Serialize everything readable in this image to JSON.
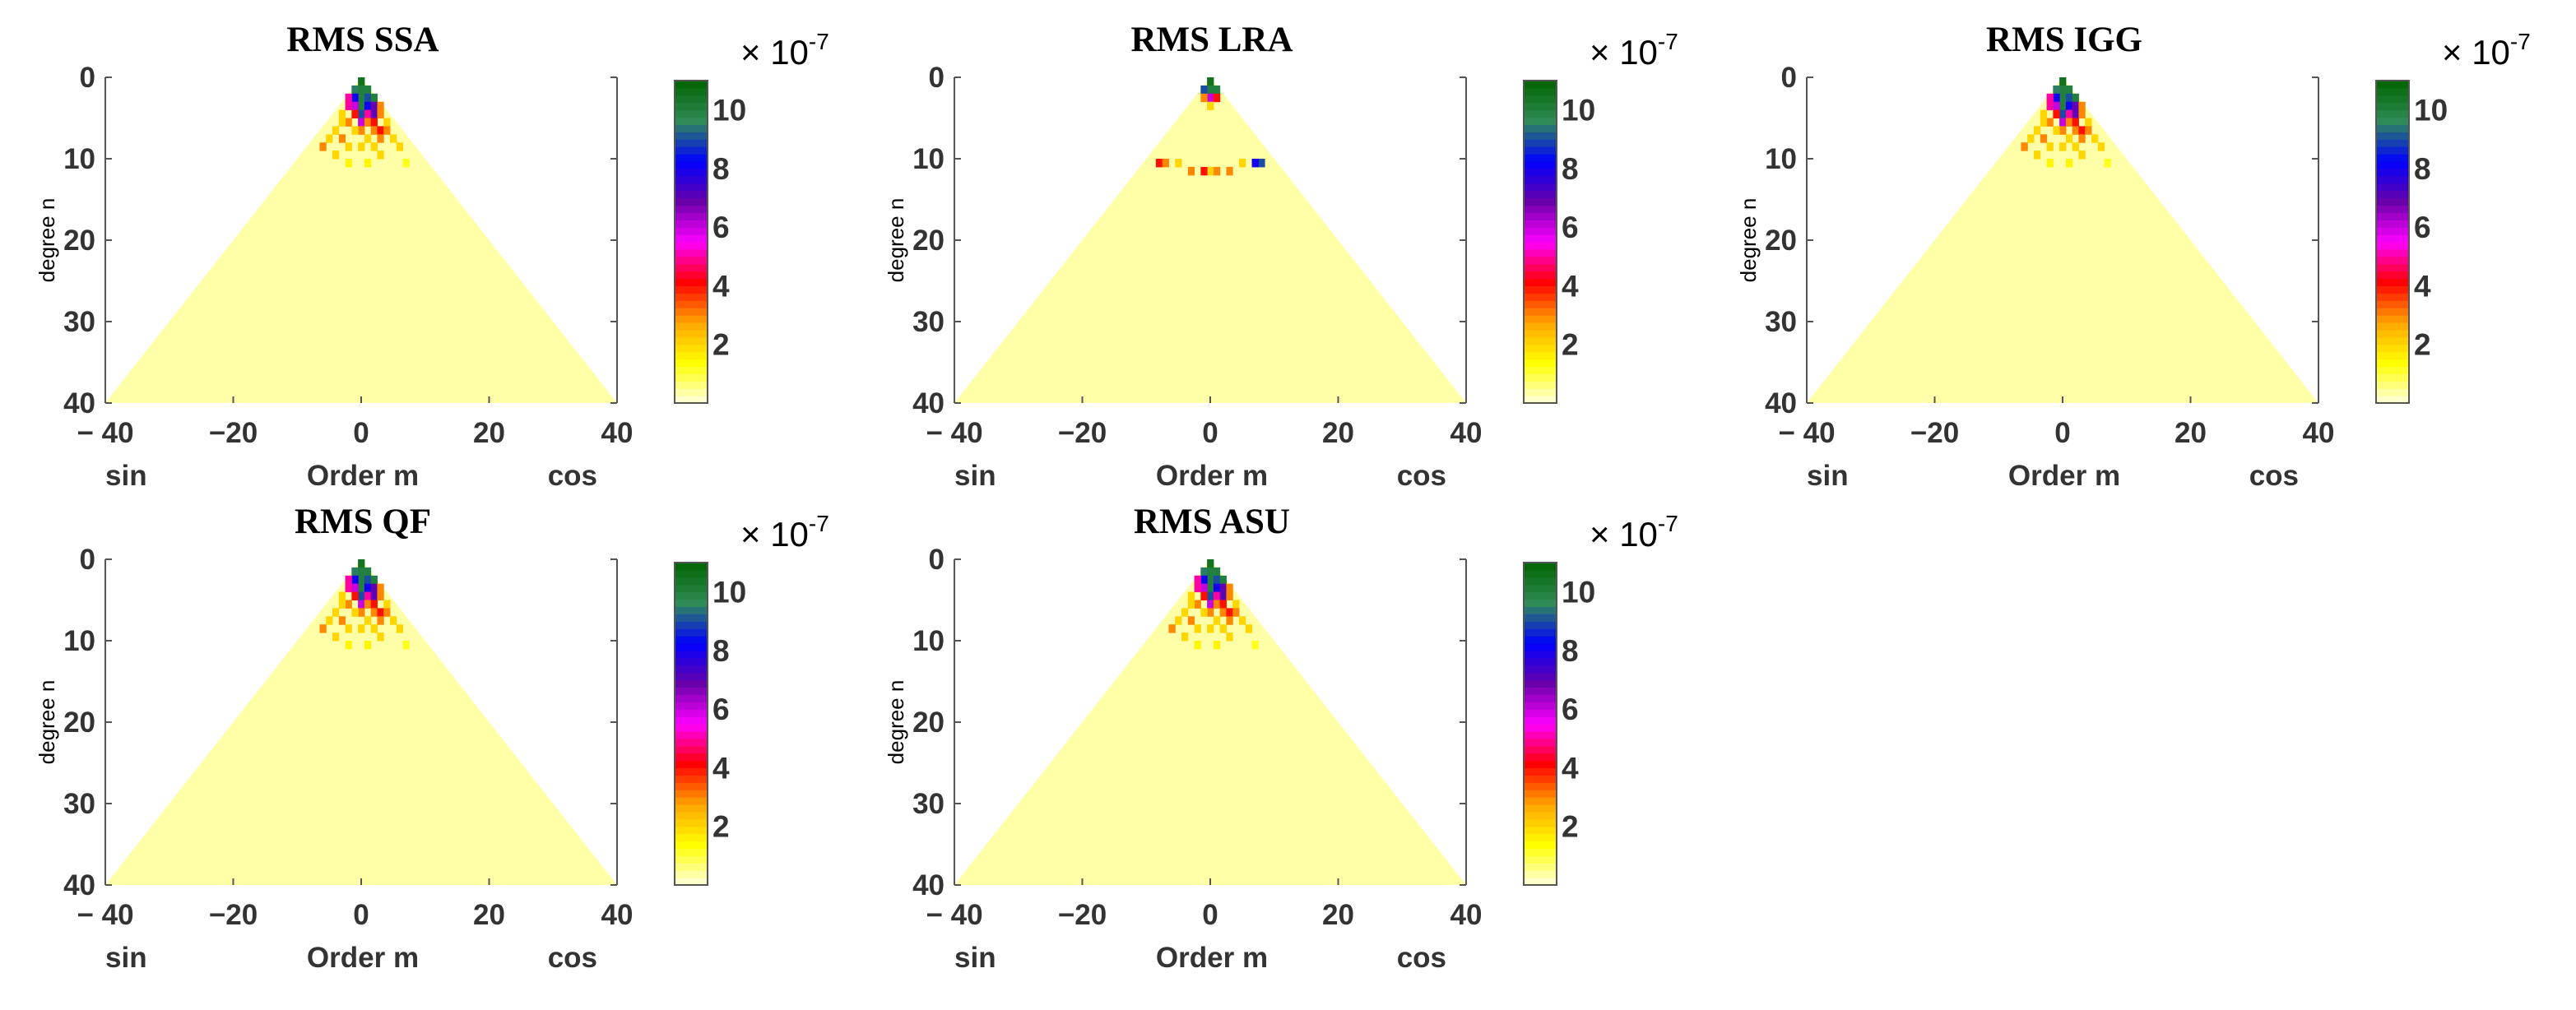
{
  "chart_data": {
    "type": "heatmap",
    "description_axes": {
      "x_range": [
        -40,
        40
      ],
      "y_range": [
        0,
        40
      ],
      "y_reversed": true
    },
    "colorbar": {
      "range": [
        0,
        11
      ],
      "ticks": [
        "2",
        "4",
        "6",
        "8",
        "10"
      ],
      "multiplier_prefix": "× 10",
      "multiplier_exponent": "-7",
      "colors": [
        "#ffffe0",
        "#ffff00",
        "#ffa500",
        "#ff0000",
        "#ff00ff",
        "#6a00aa",
        "#0000ff",
        "#2e8b57",
        "#006400"
      ]
    },
    "panels": [
      {
        "title": "RMS SSA",
        "xlabel": "Order m",
        "ylabel": "degree n",
        "xlabel_left": "sin",
        "xlabel_right": "cos",
        "xticks": [
          "− 40",
          "−20",
          "0",
          "20",
          "40"
        ],
        "yticks": [
          "0",
          "10",
          "20",
          "30",
          "40"
        ],
        "cells": [
          [
            0,
            0,
            10.5
          ],
          [
            1,
            0,
            10
          ],
          [
            1,
            1,
            10
          ],
          [
            1,
            -1,
            9.5
          ],
          [
            2,
            0,
            10
          ],
          [
            2,
            1,
            9
          ],
          [
            2,
            2,
            10
          ],
          [
            2,
            -1,
            8
          ],
          [
            2,
            -2,
            5
          ],
          [
            3,
            0,
            10
          ],
          [
            3,
            1,
            8
          ],
          [
            3,
            2,
            7
          ],
          [
            3,
            -1,
            6
          ],
          [
            3,
            -2,
            5
          ],
          [
            3,
            3,
            3
          ],
          [
            4,
            0,
            9
          ],
          [
            4,
            1,
            5
          ],
          [
            4,
            2,
            7
          ],
          [
            4,
            -1,
            4
          ],
          [
            4,
            3,
            3
          ],
          [
            4,
            -3,
            2
          ],
          [
            5,
            0,
            6
          ],
          [
            5,
            1,
            3
          ],
          [
            5,
            2,
            4
          ],
          [
            5,
            -2,
            3
          ],
          [
            5,
            -3,
            2
          ],
          [
            5,
            4,
            2
          ],
          [
            6,
            0,
            3
          ],
          [
            6,
            2,
            3
          ],
          [
            6,
            -1,
            2
          ],
          [
            6,
            3,
            4
          ],
          [
            6,
            4,
            3
          ],
          [
            6,
            -4,
            2
          ],
          [
            7,
            1,
            2
          ],
          [
            7,
            3,
            3
          ],
          [
            7,
            -3,
            3
          ],
          [
            7,
            5,
            2
          ],
          [
            7,
            -5,
            2
          ],
          [
            8,
            0,
            2
          ],
          [
            8,
            2,
            2
          ],
          [
            8,
            -2,
            2
          ],
          [
            8,
            6,
            2
          ],
          [
            8,
            -6,
            3
          ],
          [
            9,
            3,
            2
          ],
          [
            9,
            -4,
            2
          ],
          [
            10,
            1,
            1.5
          ],
          [
            10,
            -2,
            1.5
          ],
          [
            10,
            7,
            1.2
          ]
        ]
      },
      {
        "title": "RMS LRA",
        "xlabel": "Order m",
        "ylabel": "degree n",
        "xlabel_left": "sin",
        "xlabel_right": "cos",
        "xticks": [
          "− 40",
          "−20",
          "0",
          "20",
          "40"
        ],
        "yticks": [
          "0",
          "10",
          "20",
          "30",
          "40"
        ],
        "cells": [
          [
            0,
            0,
            10.5
          ],
          [
            1,
            0,
            10
          ],
          [
            1,
            1,
            10
          ],
          [
            1,
            -1,
            9
          ],
          [
            2,
            0,
            6
          ],
          [
            2,
            1,
            4
          ],
          [
            2,
            -1,
            3
          ],
          [
            3,
            0,
            2
          ],
          [
            10,
            -8,
            4
          ],
          [
            10,
            -7,
            3
          ],
          [
            10,
            8,
            9
          ],
          [
            10,
            7,
            8
          ],
          [
            10,
            -5,
            2
          ],
          [
            10,
            5,
            2
          ],
          [
            11,
            -3,
            3
          ],
          [
            11,
            3,
            3
          ],
          [
            11,
            0,
            2
          ],
          [
            11,
            -1,
            4
          ],
          [
            11,
            1,
            3
          ]
        ]
      },
      {
        "title": "RMS IGG",
        "xlabel": "Order m",
        "ylabel": "degree n",
        "xlabel_left": "sin",
        "xlabel_right": "cos",
        "xticks": [
          "− 40",
          "−20",
          "0",
          "20",
          "40"
        ],
        "yticks": [
          "0",
          "10",
          "20",
          "30",
          "40"
        ],
        "cells": [
          [
            0,
            0,
            10.5
          ],
          [
            1,
            0,
            10
          ],
          [
            1,
            1,
            10
          ],
          [
            1,
            -1,
            9.5
          ],
          [
            2,
            0,
            10
          ],
          [
            2,
            1,
            9
          ],
          [
            2,
            2,
            10
          ],
          [
            2,
            -1,
            8
          ],
          [
            2,
            -2,
            5
          ],
          [
            3,
            0,
            10
          ],
          [
            3,
            1,
            8
          ],
          [
            3,
            2,
            7
          ],
          [
            3,
            -1,
            6
          ],
          [
            3,
            -2,
            5
          ],
          [
            3,
            3,
            3
          ],
          [
            4,
            0,
            9
          ],
          [
            4,
            1,
            5
          ],
          [
            4,
            2,
            7
          ],
          [
            4,
            -1,
            4
          ],
          [
            4,
            3,
            3
          ],
          [
            4,
            -3,
            2
          ],
          [
            5,
            0,
            6
          ],
          [
            5,
            1,
            3
          ],
          [
            5,
            2,
            4
          ],
          [
            5,
            -2,
            3
          ],
          [
            5,
            -3,
            2
          ],
          [
            5,
            4,
            2
          ],
          [
            6,
            0,
            3
          ],
          [
            6,
            2,
            3
          ],
          [
            6,
            -1,
            2
          ],
          [
            6,
            3,
            4
          ],
          [
            6,
            4,
            3
          ],
          [
            6,
            -4,
            2
          ],
          [
            7,
            1,
            2
          ],
          [
            7,
            3,
            3
          ],
          [
            7,
            -3,
            3
          ],
          [
            7,
            5,
            2
          ],
          [
            7,
            -5,
            2
          ],
          [
            8,
            0,
            2
          ],
          [
            8,
            2,
            2
          ],
          [
            8,
            -2,
            2
          ],
          [
            8,
            6,
            2
          ],
          [
            8,
            -6,
            3
          ],
          [
            9,
            3,
            2
          ],
          [
            9,
            -4,
            2
          ],
          [
            10,
            1,
            1.5
          ],
          [
            10,
            -2,
            1.5
          ],
          [
            10,
            7,
            1.2
          ]
        ]
      },
      {
        "title": "RMS QF",
        "xlabel": "Order m",
        "ylabel": "degree n",
        "xlabel_left": "sin",
        "xlabel_right": "cos",
        "xticks": [
          "− 40",
          "−20",
          "0",
          "20",
          "40"
        ],
        "yticks": [
          "0",
          "10",
          "20",
          "30",
          "40"
        ],
        "cells": [
          [
            0,
            0,
            10.5
          ],
          [
            1,
            0,
            10
          ],
          [
            1,
            1,
            10
          ],
          [
            1,
            -1,
            9.5
          ],
          [
            2,
            0,
            10
          ],
          [
            2,
            1,
            9
          ],
          [
            2,
            2,
            10
          ],
          [
            2,
            -1,
            8
          ],
          [
            2,
            -2,
            5
          ],
          [
            3,
            0,
            10
          ],
          [
            3,
            1,
            8
          ],
          [
            3,
            2,
            7
          ],
          [
            3,
            -1,
            6
          ],
          [
            3,
            -2,
            5
          ],
          [
            3,
            3,
            3
          ],
          [
            4,
            0,
            9
          ],
          [
            4,
            1,
            5
          ],
          [
            4,
            2,
            7
          ],
          [
            4,
            -1,
            4
          ],
          [
            4,
            3,
            3
          ],
          [
            4,
            -3,
            2
          ],
          [
            5,
            0,
            6
          ],
          [
            5,
            1,
            3
          ],
          [
            5,
            2,
            4
          ],
          [
            5,
            -2,
            3
          ],
          [
            5,
            -3,
            2
          ],
          [
            5,
            4,
            2
          ],
          [
            6,
            0,
            3
          ],
          [
            6,
            2,
            3
          ],
          [
            6,
            -1,
            2
          ],
          [
            6,
            3,
            4
          ],
          [
            6,
            4,
            3
          ],
          [
            6,
            -4,
            2
          ],
          [
            7,
            1,
            2
          ],
          [
            7,
            3,
            3
          ],
          [
            7,
            -3,
            3
          ],
          [
            7,
            5,
            2
          ],
          [
            7,
            -5,
            2
          ],
          [
            8,
            0,
            2
          ],
          [
            8,
            2,
            2
          ],
          [
            8,
            -2,
            2
          ],
          [
            8,
            6,
            2
          ],
          [
            8,
            -6,
            3
          ],
          [
            9,
            3,
            2
          ],
          [
            9,
            -4,
            2
          ],
          [
            10,
            1,
            1.5
          ],
          [
            10,
            -2,
            1.5
          ],
          [
            10,
            7,
            1.2
          ]
        ]
      },
      {
        "title": "RMS ASU",
        "xlabel": "Order m",
        "ylabel": "degree n",
        "xlabel_left": "sin",
        "xlabel_right": "cos",
        "xticks": [
          "− 40",
          "−20",
          "0",
          "20",
          "40"
        ],
        "yticks": [
          "0",
          "10",
          "20",
          "30",
          "40"
        ],
        "cells": [
          [
            0,
            0,
            10.5
          ],
          [
            1,
            0,
            10
          ],
          [
            1,
            1,
            10
          ],
          [
            1,
            -1,
            9.5
          ],
          [
            2,
            0,
            10
          ],
          [
            2,
            1,
            9
          ],
          [
            2,
            2,
            10
          ],
          [
            2,
            -1,
            8
          ],
          [
            2,
            -2,
            5
          ],
          [
            3,
            0,
            10
          ],
          [
            3,
            1,
            8
          ],
          [
            3,
            2,
            7
          ],
          [
            3,
            -1,
            6
          ],
          [
            3,
            -2,
            5
          ],
          [
            3,
            3,
            3
          ],
          [
            4,
            0,
            9
          ],
          [
            4,
            1,
            5
          ],
          [
            4,
            2,
            7
          ],
          [
            4,
            -1,
            4
          ],
          [
            4,
            3,
            3
          ],
          [
            4,
            -3,
            2
          ],
          [
            5,
            0,
            6
          ],
          [
            5,
            1,
            3
          ],
          [
            5,
            2,
            4
          ],
          [
            5,
            -2,
            3
          ],
          [
            5,
            -3,
            2
          ],
          [
            5,
            4,
            2
          ],
          [
            6,
            0,
            3
          ],
          [
            6,
            2,
            3
          ],
          [
            6,
            -1,
            2
          ],
          [
            6,
            3,
            4
          ],
          [
            6,
            4,
            3
          ],
          [
            6,
            -4,
            2
          ],
          [
            7,
            1,
            2
          ],
          [
            7,
            3,
            3
          ],
          [
            7,
            -3,
            3
          ],
          [
            7,
            5,
            2
          ],
          [
            7,
            -5,
            2
          ],
          [
            8,
            0,
            2
          ],
          [
            8,
            2,
            2
          ],
          [
            8,
            -2,
            2
          ],
          [
            8,
            6,
            2
          ],
          [
            8,
            -6,
            3
          ],
          [
            9,
            3,
            2
          ],
          [
            9,
            -4,
            2
          ],
          [
            10,
            1,
            1.5
          ],
          [
            10,
            -2,
            1.5
          ],
          [
            10,
            7,
            1.2
          ]
        ]
      }
    ]
  }
}
